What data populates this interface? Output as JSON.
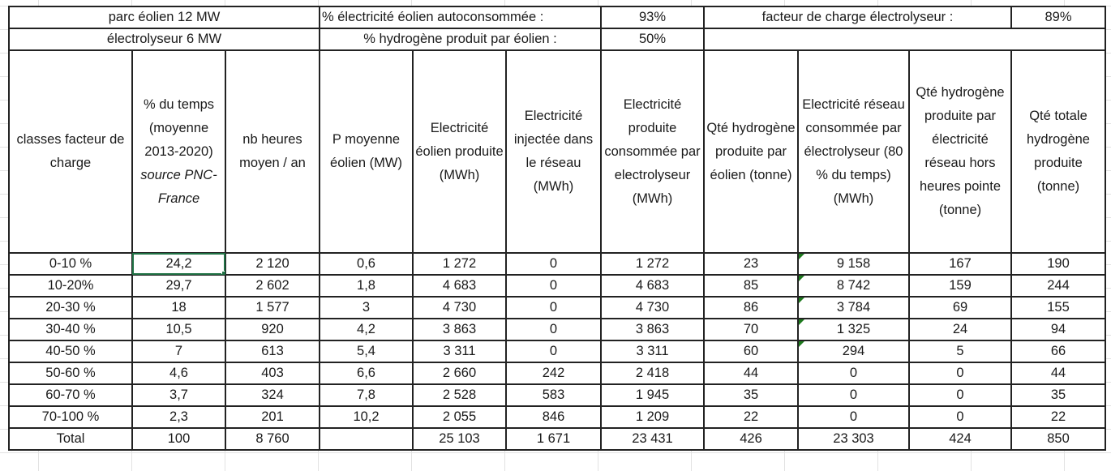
{
  "params": {
    "wind_farm": "parc éolien 12 MW",
    "electrolyser": "électrolyseur  6 MW",
    "self_consumed_label": "% électricité éolien autoconsommée :",
    "self_consumed_value": "93%",
    "h2_by_wind_label": "% hydrogène produit par éolien :",
    "h2_by_wind_value": "50%",
    "load_factor_label": "facteur de charge électrolyseur :",
    "load_factor_value": "89%"
  },
  "headers": {
    "c0": "classes facteur de charge",
    "c1_a": "% du temps (moyenne 2013-2020)",
    "c1_b": "source PNC-France",
    "c2": "nb heures moyen / an",
    "c3": "P moyenne éolien (MW)",
    "c4": "Electricité éolien produite (MWh)",
    "c5": "Electricité injectée dans le réseau (MWh)",
    "c6": "Electricité produite consommée par electrolyseur (MWh)",
    "c7": "Qté hydrogène produite par éolien (tonne)",
    "c8": "Electricité réseau consommée par électrolyseur (80 % du temps)(MWh)",
    "c9": "Qté hydrogène produite par électricité réseau hors heures pointe (tonne)",
    "c10": "Qté totale hydrogène produite (tonne)"
  },
  "rows": [
    [
      "0-10 %",
      "24,2",
      "2 120",
      "0,6",
      "1 272",
      "0",
      "1 272",
      "23",
      "9 158",
      "167",
      "190"
    ],
    [
      "10-20%",
      "29,7",
      "2 602",
      "1,8",
      "4 683",
      "0",
      "4 683",
      "85",
      "8 742",
      "159",
      "244"
    ],
    [
      "20-30 %",
      "18",
      "1 577",
      "3",
      "4 730",
      "0",
      "4 730",
      "86",
      "3 784",
      "69",
      "155"
    ],
    [
      "30-40 %",
      "10,5",
      "920",
      "4,2",
      "3 863",
      "0",
      "3 863",
      "70",
      "1 325",
      "24",
      "94"
    ],
    [
      "40-50 %",
      "7",
      "613",
      "5,4",
      "3 311",
      "0",
      "3 311",
      "60",
      "294",
      "5",
      "66"
    ],
    [
      "50-60 %",
      "4,6",
      "403",
      "6,6",
      "2 660",
      "242",
      "2 418",
      "44",
      "0",
      "0",
      "44"
    ],
    [
      "60-70 %",
      "3,7",
      "324",
      "7,8",
      "2 528",
      "583",
      "1 945",
      "35",
      "0",
      "0",
      "35"
    ],
    [
      "70-100 %",
      "2,3",
      "201",
      "10,2",
      "2 055",
      "846",
      "1 209",
      "22",
      "0",
      "0",
      "22"
    ]
  ],
  "total": [
    "Total",
    "100",
    "8 760",
    "",
    "25 103",
    "1 671",
    "23 431",
    "426",
    "23 303",
    "424",
    "850"
  ],
  "colors": {
    "selection": "#217346",
    "flag": "#1e7a1e",
    "border": "#222222"
  }
}
